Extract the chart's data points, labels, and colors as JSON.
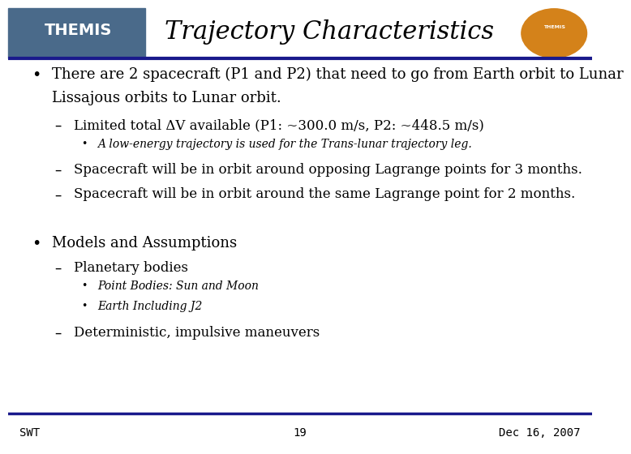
{
  "title": "Trajectory Characteristics",
  "bg_color": "#ffffff",
  "header_bar_color": "#1a1a8c",
  "title_font": "serif",
  "title_fontsize": 22,
  "body_fontsize": 13,
  "sub_fontsize": 12,
  "subsub_fontsize": 10,
  "footer_left": "SWT",
  "footer_center": "19",
  "footer_right": "Dec 16, 2007",
  "footer_fontsize": 10,
  "bullet1_line1": "There are 2 spacecraft (P1 and P2) that need to go from Earth orbit to Lunar",
  "bullet1_line2": "Lissajous orbits to Lunar orbit.",
  "sub1_1": "Limited total ΔV available (P1: ~300.0 m/s, P2: ~448.5 m/s)",
  "subsub1_1": "A low-energy trajectory is used for the Trans-lunar trajectory leg.",
  "sub1_2": "Spacecraft will be in orbit around opposing Lagrange points for 3 months.",
  "sub1_3": "Spacecraft will be in orbit around the same Lagrange point for 2 months.",
  "bullet2": "Models and Assumptions",
  "sub2_1": "Planetary bodies",
  "subsub2_1": "Point Bodies: Sun and Moon",
  "subsub2_2": "Earth Including J2",
  "sub2_2": "Deterministic, impulsive maneuvers"
}
